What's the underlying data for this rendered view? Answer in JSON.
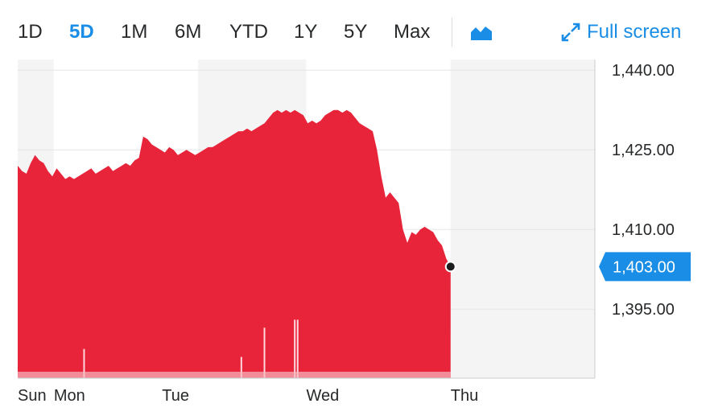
{
  "range_selector": {
    "options": [
      {
        "label": "1D",
        "active": false
      },
      {
        "label": "5D",
        "active": true
      },
      {
        "label": "1M",
        "active": false
      },
      {
        "label": "6M",
        "active": false
      },
      {
        "label": "YTD",
        "active": false
      },
      {
        "label": "1Y",
        "active": false
      },
      {
        "label": "5Y",
        "active": false
      },
      {
        "label": "Max",
        "active": false
      }
    ],
    "chart_type_icon": "mountain-chart-icon",
    "fullscreen_label": "Full screen",
    "fullscreen_icon": "expand-arrows-icon"
  },
  "colors": {
    "accent": "#1a8ee6",
    "area_fill": "#e8243a",
    "shaded_band": "#f4f4f4",
    "grid": "#e3e5e8"
  },
  "chart_data": {
    "type": "area",
    "title": "",
    "xlabel": "",
    "ylabel": "",
    "ylim": [
      1382,
      1442
    ],
    "y_ticks": [
      {
        "value": 1440,
        "label": "1,440.00"
      },
      {
        "value": 1425,
        "label": "1,425.00"
      },
      {
        "value": 1410,
        "label": "1,410.00"
      },
      {
        "value": 1395,
        "label": "1,395.00"
      }
    ],
    "x_ticks": [
      {
        "label": "Sun",
        "pos": 0
      },
      {
        "label": "Mon",
        "pos": 0.25
      },
      {
        "label": "Tue",
        "pos": 1.0
      },
      {
        "label": "Wed",
        "pos": 2.0
      },
      {
        "label": "Thu",
        "pos": 3.0
      }
    ],
    "x_domain": [
      0,
      4.0
    ],
    "shaded_bands": [
      [
        0,
        0.25
      ],
      [
        1.25,
        2.0
      ],
      [
        3.0,
        4.0
      ]
    ],
    "current_price": {
      "value": 1403.0,
      "label": "1,403.00"
    },
    "series": [
      {
        "points": [
          [
            0.0,
            1422.0
          ],
          [
            0.03,
            1421.0
          ],
          [
            0.06,
            1420.5
          ],
          [
            0.09,
            1422.5
          ],
          [
            0.12,
            1424.0
          ],
          [
            0.15,
            1423.0
          ],
          [
            0.18,
            1422.5
          ],
          [
            0.21,
            1421.0
          ],
          [
            0.24,
            1420.0
          ],
          [
            0.27,
            1421.5
          ],
          [
            0.3,
            1420.5
          ],
          [
            0.33,
            1419.5
          ],
          [
            0.36,
            1420.0
          ],
          [
            0.39,
            1419.5
          ],
          [
            0.42,
            1420.0
          ],
          [
            0.45,
            1420.5
          ],
          [
            0.48,
            1421.0
          ],
          [
            0.51,
            1421.5
          ],
          [
            0.54,
            1420.5
          ],
          [
            0.57,
            1421.0
          ],
          [
            0.6,
            1421.5
          ],
          [
            0.63,
            1422.0
          ],
          [
            0.66,
            1421.0
          ],
          [
            0.69,
            1421.5
          ],
          [
            0.72,
            1422.0
          ],
          [
            0.75,
            1422.5
          ],
          [
            0.78,
            1422.0
          ],
          [
            0.81,
            1423.0
          ],
          [
            0.84,
            1423.5
          ],
          [
            0.87,
            1427.5
          ],
          [
            0.9,
            1427.0
          ],
          [
            0.93,
            1426.0
          ],
          [
            0.96,
            1425.5
          ],
          [
            0.99,
            1425.0
          ],
          [
            1.02,
            1424.5
          ],
          [
            1.05,
            1425.5
          ],
          [
            1.08,
            1425.0
          ],
          [
            1.11,
            1424.0
          ],
          [
            1.14,
            1424.5
          ],
          [
            1.17,
            1425.0
          ],
          [
            1.2,
            1424.5
          ],
          [
            1.23,
            1424.0
          ],
          [
            1.26,
            1424.5
          ],
          [
            1.29,
            1425.0
          ],
          [
            1.32,
            1425.5
          ],
          [
            1.35,
            1425.5
          ],
          [
            1.38,
            1426.0
          ],
          [
            1.41,
            1426.5
          ],
          [
            1.44,
            1427.0
          ],
          [
            1.47,
            1427.5
          ],
          [
            1.5,
            1428.0
          ],
          [
            1.53,
            1428.5
          ],
          [
            1.56,
            1428.5
          ],
          [
            1.59,
            1429.0
          ],
          [
            1.62,
            1428.5
          ],
          [
            1.65,
            1429.0
          ],
          [
            1.68,
            1429.5
          ],
          [
            1.71,
            1430.0
          ],
          [
            1.74,
            1431.0
          ],
          [
            1.77,
            1432.0
          ],
          [
            1.8,
            1432.5
          ],
          [
            1.83,
            1432.0
          ],
          [
            1.86,
            1432.5
          ],
          [
            1.89,
            1432.0
          ],
          [
            1.92,
            1432.5
          ],
          [
            1.95,
            1432.0
          ],
          [
            1.98,
            1431.5
          ],
          [
            2.01,
            1430.0
          ],
          [
            2.04,
            1430.5
          ],
          [
            2.07,
            1430.0
          ],
          [
            2.1,
            1430.5
          ],
          [
            2.13,
            1431.5
          ],
          [
            2.16,
            1432.0
          ],
          [
            2.19,
            1432.5
          ],
          [
            2.22,
            1432.5
          ],
          [
            2.25,
            1432.0
          ],
          [
            2.28,
            1432.5
          ],
          [
            2.31,
            1432.0
          ],
          [
            2.34,
            1431.0
          ],
          [
            2.37,
            1430.0
          ],
          [
            2.4,
            1429.5
          ],
          [
            2.43,
            1429.0
          ],
          [
            2.46,
            1428.5
          ],
          [
            2.49,
            1425.0
          ],
          [
            2.52,
            1420.0
          ],
          [
            2.55,
            1416.0
          ],
          [
            2.58,
            1417.0
          ],
          [
            2.61,
            1416.0
          ],
          [
            2.64,
            1415.0
          ],
          [
            2.67,
            1410.0
          ],
          [
            2.7,
            1407.5
          ],
          [
            2.73,
            1409.5
          ],
          [
            2.76,
            1409.0
          ],
          [
            2.79,
            1410.0
          ],
          [
            2.82,
            1410.5
          ],
          [
            2.85,
            1410.0
          ],
          [
            2.88,
            1409.5
          ],
          [
            2.91,
            1408.0
          ],
          [
            2.94,
            1407.0
          ],
          [
            2.97,
            1404.5
          ],
          [
            3.0,
            1403.0
          ]
        ]
      }
    ],
    "volume_spikes": [
      [
        0.46,
        1387.5
      ],
      [
        1.55,
        1386.0
      ],
      [
        1.71,
        1391.5
      ],
      [
        1.92,
        1393.0
      ],
      [
        1.94,
        1393.0
      ]
    ]
  }
}
